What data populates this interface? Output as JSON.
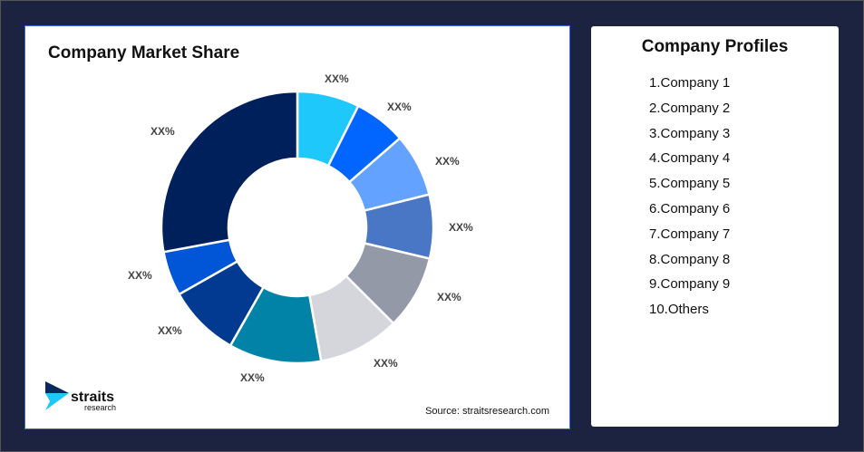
{
  "chart_data": {
    "type": "pie",
    "variant": "donut",
    "title": "Company Market Share",
    "slices": [
      {
        "label": "XX%",
        "share": 7.4,
        "color": "#1ec8fb"
      },
      {
        "label": "XX%",
        "share": 6.2,
        "color": "#0066ff"
      },
      {
        "label": "XX%",
        "share": 7.5,
        "color": "#64a2ff"
      },
      {
        "label": "XX%",
        "share": 7.6,
        "color": "#4a76c6"
      },
      {
        "label": "XX%",
        "share": 8.8,
        "color": "#9399a7"
      },
      {
        "label": "XX%",
        "share": 9.7,
        "color": "#d4d6dc"
      },
      {
        "label": "XX%",
        "share": 11.0,
        "color": "#0083a6"
      },
      {
        "label": "XX%",
        "share": 8.6,
        "color": "#023a92"
      },
      {
        "label": "XX%",
        "share": 5.3,
        "color": "#0056d6"
      },
      {
        "label": "XX%",
        "share": 27.9,
        "color": "#00205c"
      }
    ],
    "source": "Source: straitsresearch.com"
  },
  "logo": {
    "name": "straits",
    "sub": "research"
  },
  "profiles": {
    "title": "Company Profiles",
    "items": [
      "1.Company 1",
      "2.Company 2",
      "3.Company 3",
      "4.Company 4",
      "5.Company 5",
      "6.Company 6",
      "7.Company 7",
      "8.Company 8",
      "9.Company 9",
      "10.Others"
    ]
  }
}
